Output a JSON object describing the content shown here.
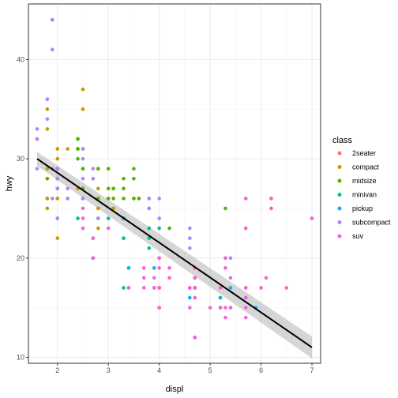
{
  "chart_data": {
    "type": "scatter",
    "xlabel": "displ",
    "ylabel": "hwy",
    "xlim": [
      1.43,
      7.17
    ],
    "ylim": [
      9.4,
      45.6
    ],
    "x_ticks": [
      2,
      3,
      4,
      5,
      6,
      7
    ],
    "y_ticks": [
      10,
      20,
      30,
      40
    ],
    "grid": true,
    "legend": {
      "title": "class",
      "placement": "right",
      "entries": [
        {
          "name": "2seater",
          "color": "#F8766D"
        },
        {
          "name": "compact",
          "color": "#C49A00"
        },
        {
          "name": "midsize",
          "color": "#53B400"
        },
        {
          "name": "minivan",
          "color": "#00C094"
        },
        {
          "name": "pickup",
          "color": "#00B6EB"
        },
        {
          "name": "subcompact",
          "color": "#A58AFF"
        },
        {
          "name": "suv",
          "color": "#FB61D7"
        }
      ]
    },
    "series": [
      {
        "name": "2seater",
        "color": "#F8766D",
        "x": [
          5.7,
          5.7,
          6.2,
          6.2,
          7.0
        ],
        "y": [
          26,
          23,
          26,
          25,
          24
        ]
      },
      {
        "name": "compact",
        "color": "#C49A00",
        "x": [
          1.8,
          1.8,
          2.0,
          2.0,
          2.8,
          2.8,
          3.1,
          1.8,
          1.8,
          2.0,
          2.0,
          2.8,
          2.8,
          3.1,
          2.2,
          2.2,
          2.4,
          2.4,
          3.0,
          1.8,
          1.8,
          1.8,
          2.0,
          2.0,
          2.0,
          2.0,
          2.8,
          1.9,
          2.0,
          2.0,
          2.0,
          2.0,
          2.5,
          2.5,
          2.8,
          2.8,
          1.8,
          1.8,
          2.5,
          2.5
        ],
        "y": [
          29,
          29,
          31,
          30,
          26,
          26,
          27,
          26,
          25,
          28,
          27,
          25,
          25,
          25,
          31,
          26,
          27,
          31,
          26,
          29,
          26,
          36,
          29,
          26,
          22,
          29,
          23,
          44,
          29,
          26,
          29,
          29,
          31,
          31,
          24,
          27,
          33,
          35,
          37,
          35
        ]
      },
      {
        "name": "midsize",
        "color": "#53B400",
        "x": [
          2.0,
          2.0,
          2.8,
          2.8,
          3.1,
          2.4,
          2.4,
          3.1,
          3.5,
          3.6,
          2.4,
          2.4,
          2.5,
          2.5,
          3.3,
          3.8,
          3.8,
          2.5,
          2.5,
          3.5,
          3.5,
          3.0,
          3.0,
          3.3,
          3.3,
          3.5,
          3.5,
          3.8,
          4.2,
          5.3,
          2.0,
          2.0,
          2.8,
          2.8,
          3.6,
          1.8,
          2.4,
          2.4,
          3.0
        ],
        "y": [
          28,
          27,
          26,
          26,
          27,
          30,
          32,
          26,
          28,
          26,
          31,
          32,
          29,
          29,
          27,
          26,
          25,
          27,
          26,
          29,
          26,
          26,
          27,
          26,
          28,
          26,
          26,
          23,
          23,
          25,
          29,
          28,
          29,
          29,
          26,
          28,
          31,
          31,
          29
        ]
      },
      {
        "name": "minivan",
        "color": "#00C094",
        "x": [
          2.4,
          3.0,
          3.3,
          3.3,
          3.3,
          3.3,
          3.3,
          3.8,
          3.8,
          3.8,
          4.0
        ],
        "y": [
          24,
          24,
          22,
          22,
          24,
          24,
          17,
          22,
          21,
          23,
          23
        ]
      },
      {
        "name": "pickup",
        "color": "#00B6EB",
        "x": [
          4.7,
          4.7,
          4.7,
          5.2,
          5.2,
          5.7,
          5.9,
          3.9,
          3.9,
          4.7,
          4.7,
          4.7,
          5.2,
          5.7,
          2.7,
          2.7,
          2.7,
          3.4,
          3.4,
          4.0,
          4.0,
          4.0,
          4.0,
          4.6,
          4.6,
          4.6,
          5.4,
          5.4,
          5.4,
          2.7,
          2.7,
          3.4
        ],
        "y": [
          17,
          12,
          16,
          16,
          15,
          16,
          15,
          17,
          19,
          17,
          12,
          17,
          16,
          16,
          20,
          20,
          22,
          19,
          17,
          17,
          17,
          20,
          15,
          17,
          16,
          17,
          15,
          17,
          17,
          20,
          22,
          19
        ]
      },
      {
        "name": "subcompact",
        "color": "#A58AFF",
        "x": [
          3.8,
          3.8,
          4.0,
          4.0,
          4.6,
          4.6,
          4.6,
          4.6,
          5.4,
          1.6,
          1.6,
          1.6,
          1.6,
          1.6,
          1.8,
          1.8,
          1.8,
          2.0,
          2.2,
          2.2,
          2.5,
          2.5,
          2.5,
          2.5,
          2.5,
          2.5,
          2.7,
          2.7,
          2.0,
          2.0,
          2.0,
          2.8,
          1.9,
          1.9,
          1.9,
          1.9,
          2.0
        ],
        "y": [
          26,
          25,
          26,
          24,
          21,
          22,
          23,
          22,
          20,
          33,
          32,
          32,
          29,
          32,
          34,
          36,
          36,
          29,
          26,
          27,
          30,
          31,
          26,
          26,
          28,
          26,
          29,
          28,
          27,
          24,
          24,
          24,
          44,
          41,
          29,
          26,
          28
        ]
      },
      {
        "name": "suv",
        "color": "#FB61D7",
        "x": [
          5.3,
          5.3,
          5.3,
          5.7,
          6.0,
          5.7,
          5.7,
          6.2,
          6.2,
          7.0,
          5.3,
          5.3,
          5.7,
          6.5,
          3.7,
          3.7,
          3.9,
          3.9,
          4.7,
          4.7,
          4.7,
          5.2,
          5.2,
          4.0,
          4.0,
          4.0,
          4.0,
          4.6,
          5.0,
          4.2,
          4.2,
          4.6,
          4.6,
          4.6,
          5.4,
          5.4,
          4.0,
          4.7,
          4.7,
          4.7,
          5.7,
          6.1,
          2.5,
          2.5,
          2.5,
          4.0,
          4.7,
          4.7,
          5.7,
          3.0,
          3.7,
          4.0,
          4.7,
          4.7,
          4.7,
          5.7,
          2.7,
          2.7,
          3.4,
          4.0,
          4.0,
          4.0
        ],
        "y": [
          20,
          15,
          20,
          17,
          17,
          26,
          23,
          26,
          25,
          24,
          19,
          14,
          15,
          17,
          19,
          18,
          17,
          18,
          12,
          17,
          16,
          15,
          17,
          17,
          20,
          15,
          17,
          17,
          15,
          18,
          19,
          17,
          15,
          17,
          15,
          18,
          20,
          17,
          12,
          19,
          16,
          18,
          24,
          23,
          25,
          20,
          17,
          18,
          14,
          23,
          17,
          17,
          18,
          19,
          12,
          17,
          22,
          20,
          17,
          17,
          15,
          19
        ]
      }
    ],
    "trend_line": {
      "color": "#000000",
      "band_color": "#999999",
      "x": [
        1.6,
        7.0
      ],
      "y": [
        30.0,
        11.0
      ],
      "band_upper": [
        30.7,
        12.1
      ],
      "band_lower": [
        29.3,
        9.9
      ]
    }
  }
}
